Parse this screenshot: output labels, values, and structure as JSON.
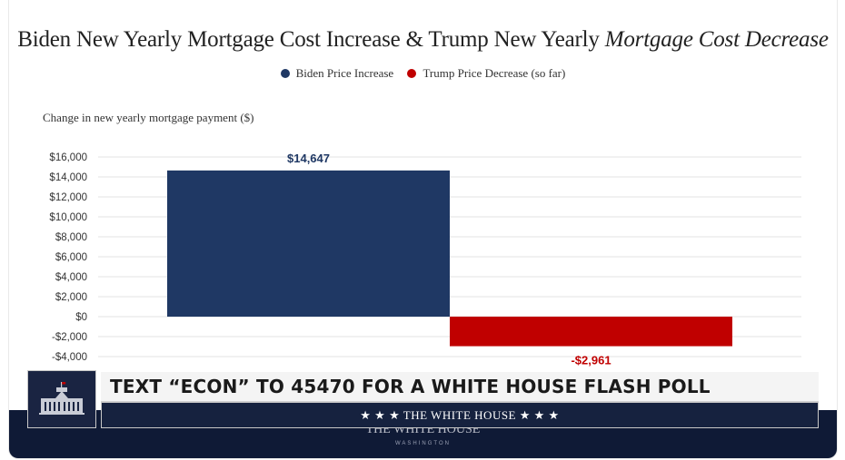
{
  "title_main": "Biden New Yearly Mortgage Cost Increase & Trump New Yearly",
  "title_italic": "Mortgage Cost Decrease",
  "chart_data": {
    "type": "bar",
    "title": "Biden New Yearly Mortgage Cost Increase & Trump New Yearly Mortgage Cost Decrease",
    "ylabel": "Change in new yearly mortgage payment ($)",
    "xlabel": "",
    "categories": [
      "Biden Price Increase",
      "Trump Price Decrease (so far)"
    ],
    "series": [
      {
        "name": "Biden Price Increase",
        "values": [
          14647,
          null
        ],
        "color": "#1f3864"
      },
      {
        "name": "Trump Price Decrease (so far)",
        "values": [
          null,
          -2961
        ],
        "color": "#c00000"
      }
    ],
    "data_labels": [
      "$14,647",
      "-$2,961"
    ],
    "ylim": [
      -4000,
      16000
    ],
    "yticks": [
      16000,
      14000,
      12000,
      10000,
      8000,
      6000,
      4000,
      2000,
      0,
      -2000,
      -4000
    ],
    "ytick_labels": [
      "$16,000",
      "$14,000",
      "$12,000",
      "$10,000",
      "$8,000",
      "$6,000",
      "$4,000",
      "$2,000",
      "$0",
      "-$2,000",
      "-$4,000"
    ],
    "grid": true,
    "legend_position": "top-center"
  },
  "legend": [
    {
      "label": "Biden Price Increase",
      "color": "#1f3864"
    },
    {
      "label": "Trump Price Decrease (so far)",
      "color": "#c00000"
    }
  ],
  "overlay": {
    "banner_text": "TEXT “ECON” TO 45470 FOR A WHITE HOUSE FLASH POLL",
    "subbanner_text": "★ ★ ★  THE WHITE HOUSE  ★ ★ ★",
    "watermark_title": "THE WHITE HOUSE",
    "watermark_sub": "WASHINGTON"
  },
  "colors": {
    "biden": "#1f3864",
    "trump": "#c00000",
    "footer": "#0f1a36"
  }
}
